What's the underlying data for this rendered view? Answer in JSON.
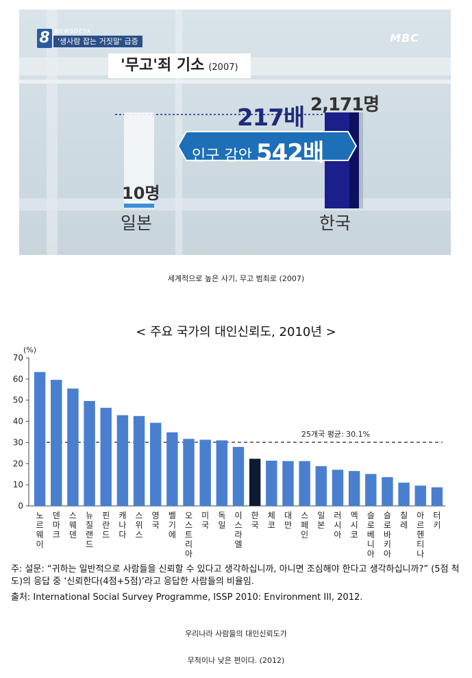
{
  "tv_screen": {
    "program_logo": "8",
    "program_name": "NEWSDESK",
    "ticker": "'생사람 잡는 거짓말' 급증",
    "broadcaster": "MBC",
    "title": "'무고'죄 기소",
    "title_year": "(2007)",
    "ratio_text": "217배",
    "population_adjusted_prefix": "인구 감안",
    "population_adjusted_value": "542배",
    "colors": {
      "korea_bar": "#1a1f8c",
      "japan_bar": "#3d8fd6",
      "banner": "#1d6fb8"
    }
  },
  "caption_top": "세계적으로 높은 사기, 무고 범죄로 (2007)",
  "chart_data": [
    {
      "type": "bar",
      "categories": [
        "일본",
        "한국"
      ],
      "values": [
        10,
        2171
      ],
      "value_labels": [
        "10명",
        "2,171명"
      ]
    },
    {
      "type": "bar",
      "title": "< 주요 국가의 대인신뢰도, 2010년 >",
      "ylabel": "(%)",
      "ylim": [
        0,
        70
      ],
      "yticks": [
        "0",
        "10",
        "20",
        "30",
        "40",
        "50",
        "60",
        "70"
      ],
      "categories": [
        "노르웨이",
        "덴마크",
        "스웨덴",
        "뉴질랜드",
        "핀란드",
        "캐나다",
        "스위스",
        "영국",
        "벨기에",
        "오스트리아",
        "미국",
        "독일",
        "이스라엘",
        "한국",
        "체코",
        "대만",
        "스페인",
        "일본",
        "러시아",
        "멕시코",
        "슬로베니아",
        "슬로바키아",
        "칠레",
        "아르헨티나",
        "터키"
      ],
      "values": [
        63.3,
        59.6,
        55.5,
        49.6,
        46.4,
        42.9,
        42.5,
        39.3,
        34.8,
        31.7,
        31.3,
        31.0,
        27.9,
        22.3,
        21.4,
        21.2,
        21.2,
        18.8,
        17.1,
        16.5,
        15.1,
        13.6,
        11.0,
        9.6,
        8.8
      ],
      "highlight": "한국",
      "reference_line": {
        "value": 30.1,
        "label": "25개국 평균: 30.1%"
      },
      "colors": {
        "bar": "#4a7fd0",
        "highlight": "#0e1a33",
        "reference": "#222222"
      }
    }
  ],
  "note": "주: 설문: “귀하는 일반적으로 사람들을 신뢰할 수 있다고 생각하십니까, 아니면 조심해야 한다고 생각하십니까?” (5점 척도)의 응답 중 ‘신뢰한다(4점+5점)’라고 응답한 사람들의 비율임.",
  "source": "출처: International Social Survey Programme, ISSP 2010: Environment III, 2012.",
  "caption_bottom_1": "우리나라 사람들의 대인신뢰도가",
  "caption_bottom_2": "무척이나 낮은 편이다. (2012)"
}
